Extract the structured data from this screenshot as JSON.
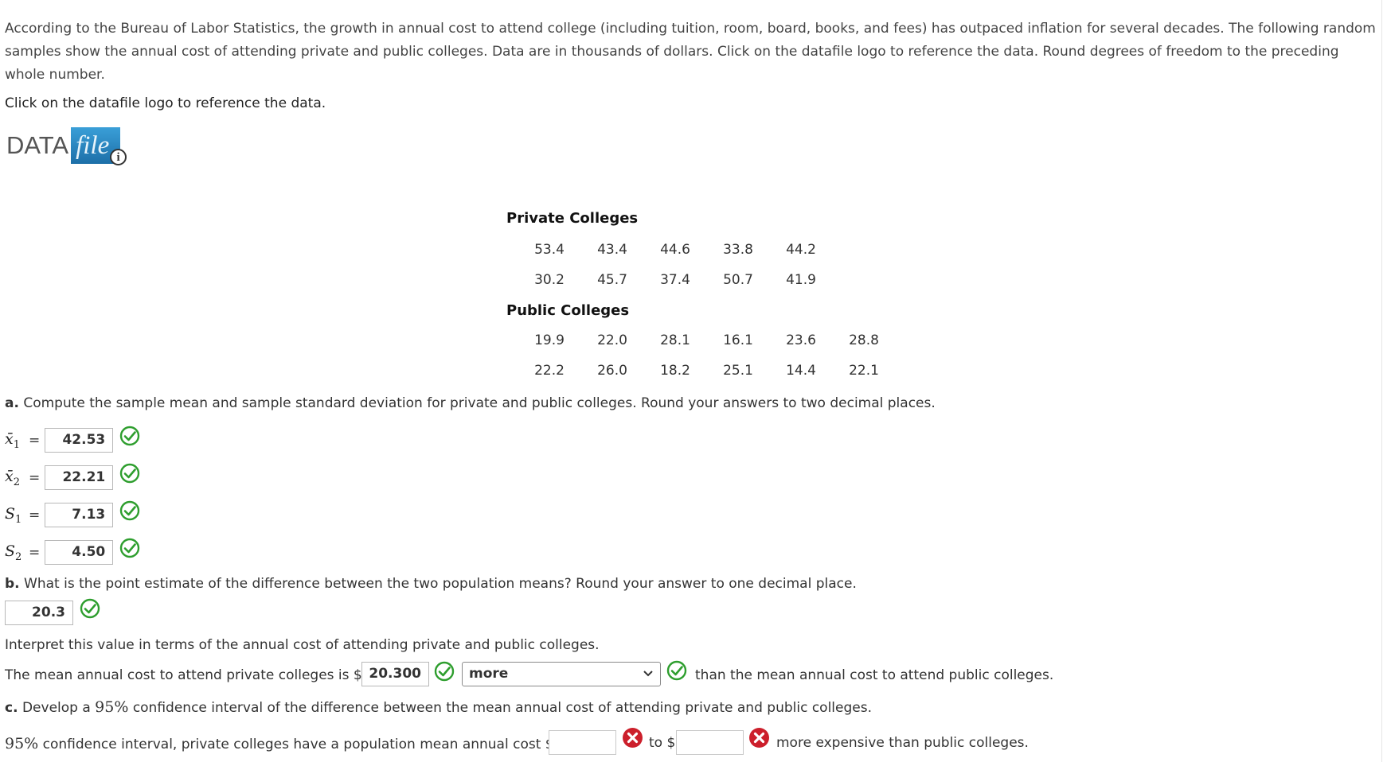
{
  "intro": "According to the Bureau of Labor Statistics, the growth in annual cost to attend college (including tuition, room, board, books, and fees) has outpaced inflation for several decades. The following random samples show the annual cost of attending private and public colleges. Data are in thousands of dollars. Click on the datafile logo to reference the data. Round degrees of freedom to the preceding whole number.",
  "click_note": "Click on the datafile logo to reference the data.",
  "logo": {
    "data_text": "DATA",
    "file_text": "file",
    "info": "i"
  },
  "table": {
    "private_title": "Private Colleges",
    "private_rows": [
      [
        "53.4",
        "43.4",
        "44.6",
        "33.8",
        "44.2"
      ],
      [
        "30.2",
        "45.7",
        "37.4",
        "50.7",
        "41.9"
      ]
    ],
    "public_title": "Public Colleges",
    "public_rows": [
      [
        "19.9",
        "22.0",
        "28.1",
        "16.1",
        "23.6",
        "28.8"
      ],
      [
        "22.2",
        "26.0",
        "18.2",
        "25.1",
        "14.4",
        "22.1"
      ]
    ]
  },
  "part_a": {
    "letter": "a.",
    "question": "Compute the sample mean and sample standard deviation for private and public colleges. Round your answers to two decimal places.",
    "x1_label": "x̄",
    "x1_sub": "1",
    "x1_value": "42.53",
    "x2_label": "x̄",
    "x2_sub": "2",
    "x2_value": "22.21",
    "s1_label": "S",
    "s1_sub": "1",
    "s1_value": "7.13",
    "s2_label": "S",
    "s2_sub": "2",
    "s2_value": "4.50",
    "equals": "="
  },
  "part_b": {
    "letter": "b.",
    "question": "What is the point estimate of the difference between the two population means? Round your answer to one decimal place.",
    "estimate_value": "20.3",
    "interpret": "Interpret this value in terms of the annual cost of attending private and public colleges.",
    "sentence_start": "The mean annual cost to attend private colleges is $",
    "sentence_value": "20.300",
    "select_value": "more",
    "sentence_end": "than the mean annual cost to attend public colleges."
  },
  "part_c": {
    "letter": "c.",
    "question_pre": "Develop a",
    "question_pct": "95%",
    "question_post": "confidence interval of the difference between the mean annual cost of attending private and public colleges.",
    "line_pct": "95%",
    "line_start": "confidence interval, private colleges have a population mean annual cost $",
    "lower_value": "",
    "to_text": "to $",
    "upper_value": "",
    "line_end": "more expensive than public colleges."
  },
  "colors": {
    "correct": "#2e9e2e",
    "incorrect": "#cc1f2b",
    "logo_blue": "#2a86c4"
  },
  "icons": {
    "correct": "check-circle-icon",
    "incorrect": "x-circle-icon",
    "dropdown": "chevron-down-icon"
  }
}
